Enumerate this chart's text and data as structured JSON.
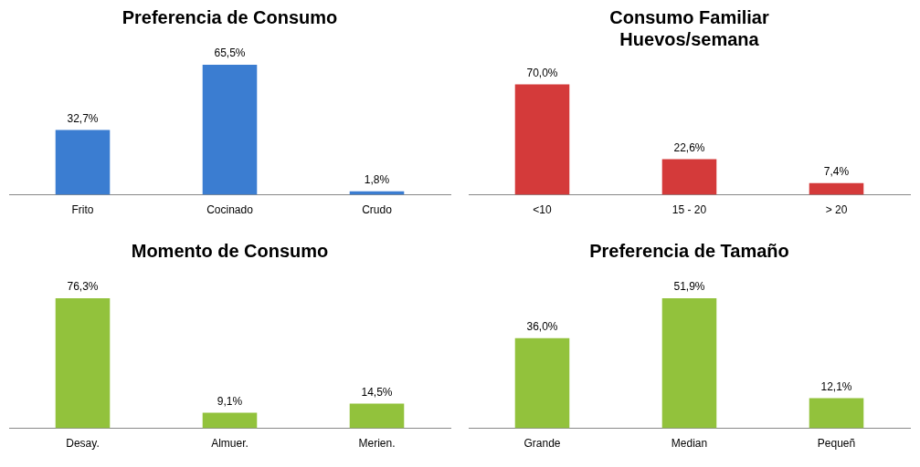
{
  "chart_data": [
    {
      "type": "bar",
      "title": "Preferencia de Consumo",
      "categories": [
        "Frito",
        "Cocinado",
        "Crudo"
      ],
      "values": [
        32.7,
        65.5,
        1.8
      ],
      "value_labels": [
        "32,7%",
        "65,5%",
        "1,8%"
      ],
      "color": "#3b7dd1"
    },
    {
      "type": "bar",
      "title": "Consumo Familiar\nHuevos/semana",
      "categories": [
        "<10",
        "15 - 20",
        "> 20"
      ],
      "values": [
        70.0,
        22.6,
        7.4
      ],
      "value_labels": [
        "70,0%",
        "22,6%",
        "7,4%"
      ],
      "color": "#d43a3a"
    },
    {
      "type": "bar",
      "title": "Momento de Consumo",
      "categories": [
        "Desay.",
        "Almuer.",
        "Merien."
      ],
      "values": [
        76.3,
        9.1,
        14.5
      ],
      "value_labels": [
        "76,3%",
        "9,1%",
        "14,5%"
      ],
      "color": "#92c23c"
    },
    {
      "type": "bar",
      "title": "Preferencia de Tamaño",
      "categories": [
        "Grande",
        "Median",
        "Pequeñ"
      ],
      "values": [
        36.0,
        51.9,
        12.1
      ],
      "value_labels": [
        "36,0%",
        "51,9%",
        "12,1%"
      ],
      "color": "#92c23c"
    }
  ]
}
